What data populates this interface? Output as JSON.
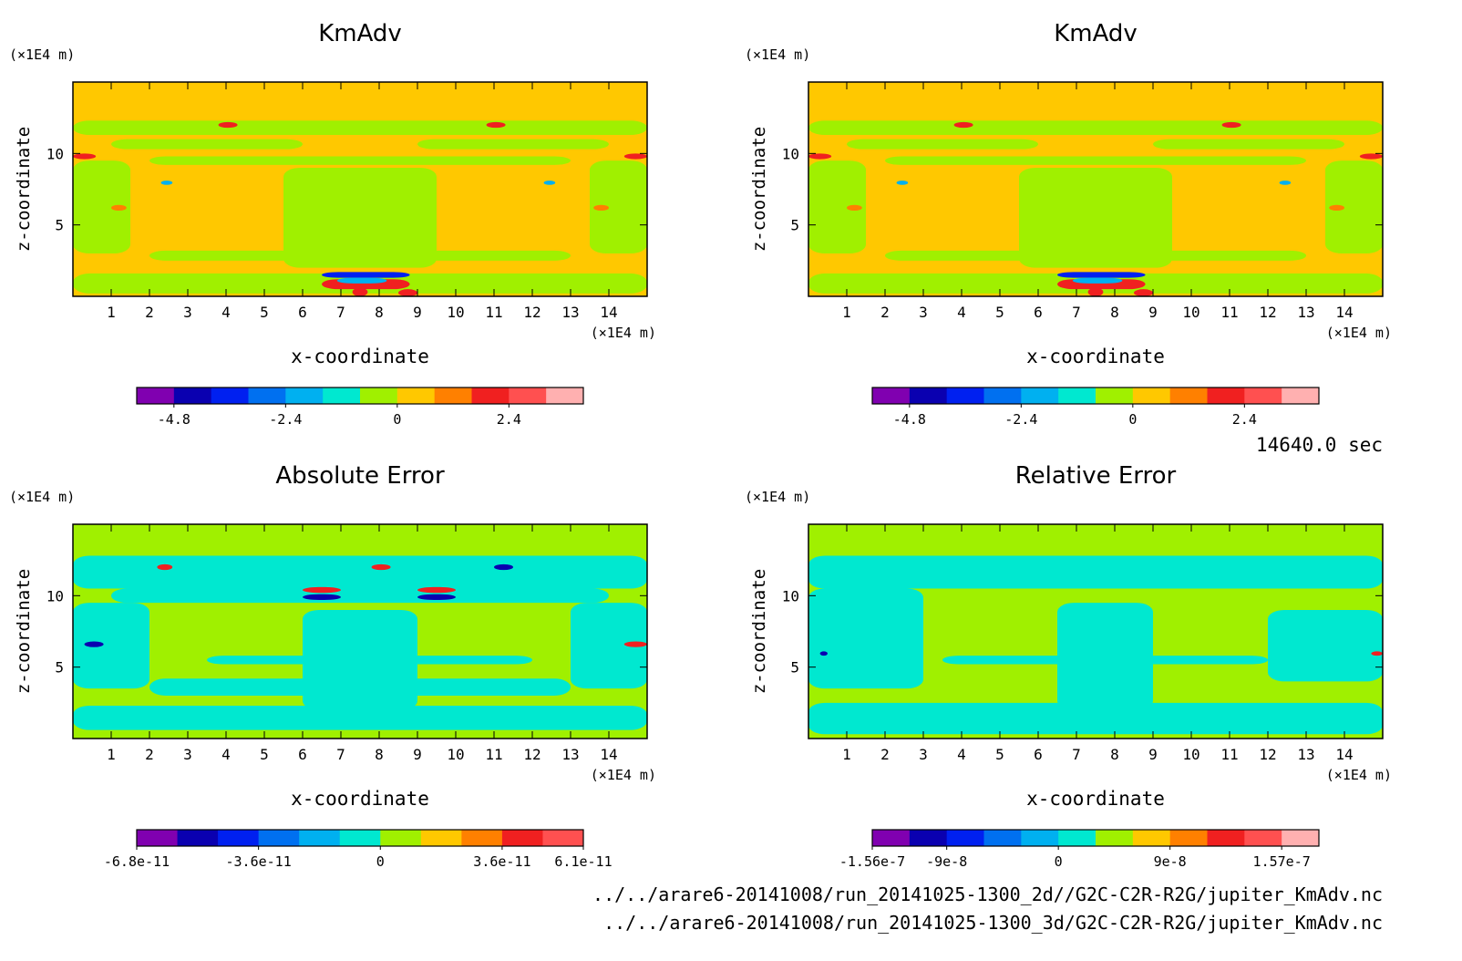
{
  "time_label": "14640.0 sec",
  "footer_lines": [
    "../../arare6-20141008/run_20141025-1300_2d//G2C-C2R-R2G/jupiter_KmAdv.nc",
    "../../arare6-20141008/run_20141025-1300_3d/G2C-C2R-R2G/jupiter_KmAdv.nc"
  ],
  "chart_data": [
    {
      "type": "heatmap",
      "title": "KmAdv",
      "xlabel": "x-coordinate",
      "ylabel": "z-coordinate",
      "x_unit": "(×1E4 m)",
      "y_unit": "(×1E4 m)",
      "xlim": [
        0,
        15
      ],
      "ylim": [
        0,
        15
      ],
      "x_ticks": [
        1,
        2,
        3,
        4,
        5,
        6,
        7,
        8,
        9,
        10,
        11,
        12,
        13,
        14
      ],
      "y_ticks": [
        5,
        10
      ],
      "colorbar": {
        "colors": [
          "#8000b0",
          "#0a00b0",
          "#0020f0",
          "#0070f0",
          "#00b0f0",
          "#00e8d0",
          "#a0f000",
          "#ffc800",
          "#ff8000",
          "#f02020",
          "#ff5050",
          "#ffb0b0"
        ],
        "labels": [
          "-4.8",
          "-2.4",
          "0",
          "2.4"
        ],
        "label_positions": [
          1,
          4,
          7,
          10
        ]
      },
      "background": "#ffc800"
    },
    {
      "type": "heatmap",
      "title": "KmAdv",
      "xlabel": "x-coordinate",
      "ylabel": "z-coordinate",
      "x_unit": "(×1E4 m)",
      "y_unit": "(×1E4 m)",
      "xlim": [
        0,
        15
      ],
      "ylim": [
        0,
        15
      ],
      "x_ticks": [
        1,
        2,
        3,
        4,
        5,
        6,
        7,
        8,
        9,
        10,
        11,
        12,
        13,
        14
      ],
      "y_ticks": [
        5,
        10
      ],
      "colorbar": {
        "colors": [
          "#8000b0",
          "#0a00b0",
          "#0020f0",
          "#0070f0",
          "#00b0f0",
          "#00e8d0",
          "#a0f000",
          "#ffc800",
          "#ff8000",
          "#f02020",
          "#ff5050",
          "#ffb0b0"
        ],
        "labels": [
          "-4.8",
          "-2.4",
          "0",
          "2.4"
        ],
        "label_positions": [
          1,
          4,
          7,
          10
        ]
      },
      "background": "#ffc800"
    },
    {
      "type": "heatmap",
      "title": "Absolute Error",
      "xlabel": "x-coordinate",
      "ylabel": "z-coordinate",
      "x_unit": "(×1E4 m)",
      "y_unit": "(×1E4 m)",
      "xlim": [
        0,
        15
      ],
      "ylim": [
        0,
        15
      ],
      "x_ticks": [
        1,
        2,
        3,
        4,
        5,
        6,
        7,
        8,
        9,
        10,
        11,
        12,
        13,
        14
      ],
      "y_ticks": [
        5,
        10
      ],
      "colorbar": {
        "colors": [
          "#8000b0",
          "#0a00b0",
          "#0020f0",
          "#0070f0",
          "#00b0f0",
          "#00e8d0",
          "#a0f000",
          "#ffc800",
          "#ff8000",
          "#f02020",
          "#ff5050"
        ],
        "labels": [
          "-6.8e-11",
          "-3.6e-11",
          "0",
          "3.6e-11",
          "6.1e-11"
        ],
        "label_positions": [
          0,
          3,
          6,
          9,
          11
        ]
      },
      "background": "#a0f000"
    },
    {
      "type": "heatmap",
      "title": "Relative Error",
      "xlabel": "x-coordinate",
      "ylabel": "z-coordinate",
      "x_unit": "(×1E4 m)",
      "y_unit": "(×1E4 m)",
      "xlim": [
        0,
        15
      ],
      "ylim": [
        0,
        15
      ],
      "x_ticks": [
        1,
        2,
        3,
        4,
        5,
        6,
        7,
        8,
        9,
        10,
        11,
        12,
        13,
        14
      ],
      "y_ticks": [
        5,
        10
      ],
      "colorbar": {
        "colors": [
          "#8000b0",
          "#0a00b0",
          "#0020f0",
          "#0070f0",
          "#00b0f0",
          "#00e8d0",
          "#a0f000",
          "#ffc800",
          "#ff8000",
          "#f02020",
          "#ff5050",
          "#ffb0b0"
        ],
        "labels": [
          "-1.56e-7",
          "-9e-8",
          "0",
          "9e-8",
          "1.57e-7"
        ],
        "label_positions": [
          0,
          2,
          5,
          8,
          11
        ]
      },
      "background": "#a0f000"
    }
  ]
}
